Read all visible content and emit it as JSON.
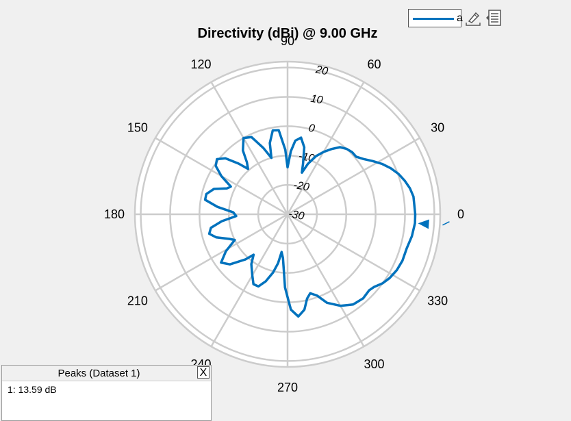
{
  "chart_data": {
    "type": "polar",
    "title": "Directivity (dBi) @ 9.00 GHz",
    "angle_ticks": [
      0,
      30,
      60,
      90,
      120,
      150,
      180,
      210,
      240,
      270,
      300,
      330
    ],
    "radial_ticks": [
      -30,
      -20,
      -10,
      0,
      10,
      20
    ],
    "rlim": [
      -30,
      22
    ],
    "grid": true,
    "series": [
      {
        "name": "a",
        "color": "#0072bd",
        "points": [
          [
            0,
            13.5
          ],
          [
            8,
            13.3
          ],
          [
            12,
            12.6
          ],
          [
            16,
            11.5
          ],
          [
            20,
            10.2
          ],
          [
            24,
            8.5
          ],
          [
            28,
            6.5
          ],
          [
            32,
            4.2
          ],
          [
            36,
            2.0
          ],
          [
            40,
            0.5
          ],
          [
            44,
            0.5
          ],
          [
            48,
            0.0
          ],
          [
            52,
            -1.0
          ],
          [
            56,
            -3.2
          ],
          [
            60,
            -5.5
          ],
          [
            64,
            -8.0
          ],
          [
            68,
            -11.5
          ],
          [
            71,
            -15.0
          ],
          [
            73,
            -12.0
          ],
          [
            76,
            -6.5
          ],
          [
            80,
            -3.5
          ],
          [
            84,
            -4.8
          ],
          [
            87,
            -8.5
          ],
          [
            90,
            -14.0
          ],
          [
            92,
            -8.0
          ],
          [
            96,
            -1.2
          ],
          [
            100,
            -1.0
          ],
          [
            104,
            -5.0
          ],
          [
            106,
            -10.0
          ],
          [
            110,
            -6.0
          ],
          [
            115,
            -1.0
          ],
          [
            120,
            0.0
          ],
          [
            125,
            -3.5
          ],
          [
            128,
            -7.5
          ],
          [
            131,
            -9.5
          ],
          [
            134,
            -6.0
          ],
          [
            138,
            -1.5
          ],
          [
            142,
            0.5
          ],
          [
            146,
            -0.5
          ],
          [
            150,
            -4.0
          ],
          [
            154,
            -8.5
          ],
          [
            157,
            -7.5
          ],
          [
            161,
            -3.5
          ],
          [
            166,
            -1.5
          ],
          [
            170,
            -1.5
          ],
          [
            174,
            -6.0
          ],
          [
            178,
            -11.5
          ],
          [
            182,
            -12.5
          ],
          [
            186,
            -7.5
          ],
          [
            190,
            -3.5
          ],
          [
            194,
            -2.5
          ],
          [
            198,
            -4.5
          ],
          [
            203,
            -8.5
          ],
          [
            206,
            -10.0
          ],
          [
            211,
            -5.5
          ],
          [
            216,
            -2.0
          ],
          [
            221,
            -4.0
          ],
          [
            227,
            -9.0
          ],
          [
            230,
            -12.0
          ],
          [
            234,
            -9.0
          ],
          [
            240,
            -6.0
          ],
          [
            244,
            -3.5
          ],
          [
            248,
            -3.5
          ],
          [
            252,
            -6.0
          ],
          [
            256,
            -9.5
          ],
          [
            259,
            -13.0
          ],
          [
            261,
            -17.0
          ],
          [
            264,
            -15.0
          ],
          [
            268,
            -5.0
          ],
          [
            272,
            2.5
          ],
          [
            276,
            5.0
          ],
          [
            280,
            3.0
          ],
          [
            283,
            -0.5
          ],
          [
            286,
            -2.0
          ],
          [
            290,
            -0.5
          ],
          [
            294,
            3.0
          ],
          [
            300,
            6.0
          ],
          [
            306,
            8.0
          ],
          [
            312,
            8.5
          ],
          [
            317,
            8.0
          ],
          [
            320,
            8.5
          ],
          [
            324,
            10.0
          ],
          [
            328,
            11.0
          ],
          [
            333,
            11.8
          ],
          [
            338,
            12.2
          ],
          [
            344,
            12.2
          ],
          [
            350,
            13.0
          ],
          [
            356,
            13.5
          ],
          [
            360,
            13.5
          ]
        ]
      }
    ],
    "marker": {
      "label": "1",
      "angle": 356,
      "value": 13.59
    }
  },
  "legend": {
    "label": "a"
  },
  "peaks": {
    "title": "Peaks (Dataset 1)",
    "close_label": "X",
    "entries": [
      "1: 13.59 dB"
    ]
  },
  "colors": {
    "series": "#0072bd",
    "grid": "#cccccc",
    "background": "#f0f0f0"
  },
  "icons": [
    "edit-icon",
    "list-icon"
  ]
}
